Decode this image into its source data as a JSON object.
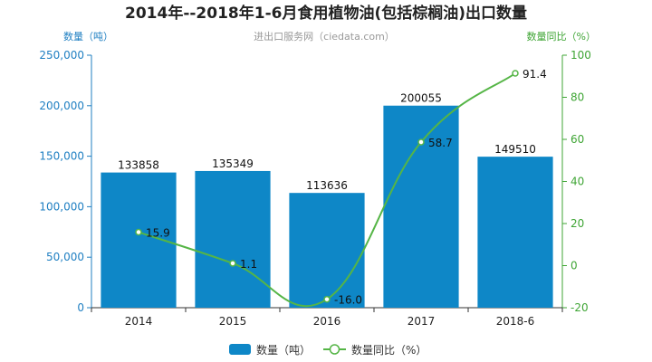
{
  "chart_data": {
    "type": "bar",
    "title": "2014年--2018年1-6月食用植物油(包括棕榈油)出口数量",
    "subtitle": "进出口服务网（ciedata.com）",
    "categories": [
      "2014",
      "2015",
      "2016",
      "2017",
      "2018-6"
    ],
    "y_left_label": "数量（吨）",
    "y_right_label": "数量同比（%）",
    "y_left_range": [
      0,
      250000
    ],
    "y_left_ticks": [
      "0",
      "50,000",
      "100,000",
      "150,000",
      "200,000",
      "250,000"
    ],
    "y_right_range": [
      -20,
      100
    ],
    "y_right_ticks": [
      "-20",
      "0",
      "20",
      "40",
      "60",
      "80",
      "100"
    ],
    "series": [
      {
        "name": "数量（吨）",
        "type": "bar",
        "axis": "left",
        "color": "#0e87c7",
        "values": [
          133858,
          135349,
          113636,
          200055,
          149510
        ],
        "labels": [
          "133858",
          "135349",
          "113636",
          "200055",
          "149510"
        ]
      },
      {
        "name": "数量同比（%）",
        "type": "line",
        "axis": "right",
        "color": "#55b546",
        "values": [
          15.9,
          1.1,
          -16.0,
          58.7,
          91.4
        ],
        "labels": [
          "15.9",
          "1.1",
          "-16.0",
          "58.7",
          "91.4"
        ]
      }
    ],
    "legend": [
      "数量（吨）",
      "数量同比（%）"
    ],
    "legend_position": "bottom",
    "grid": false
  }
}
